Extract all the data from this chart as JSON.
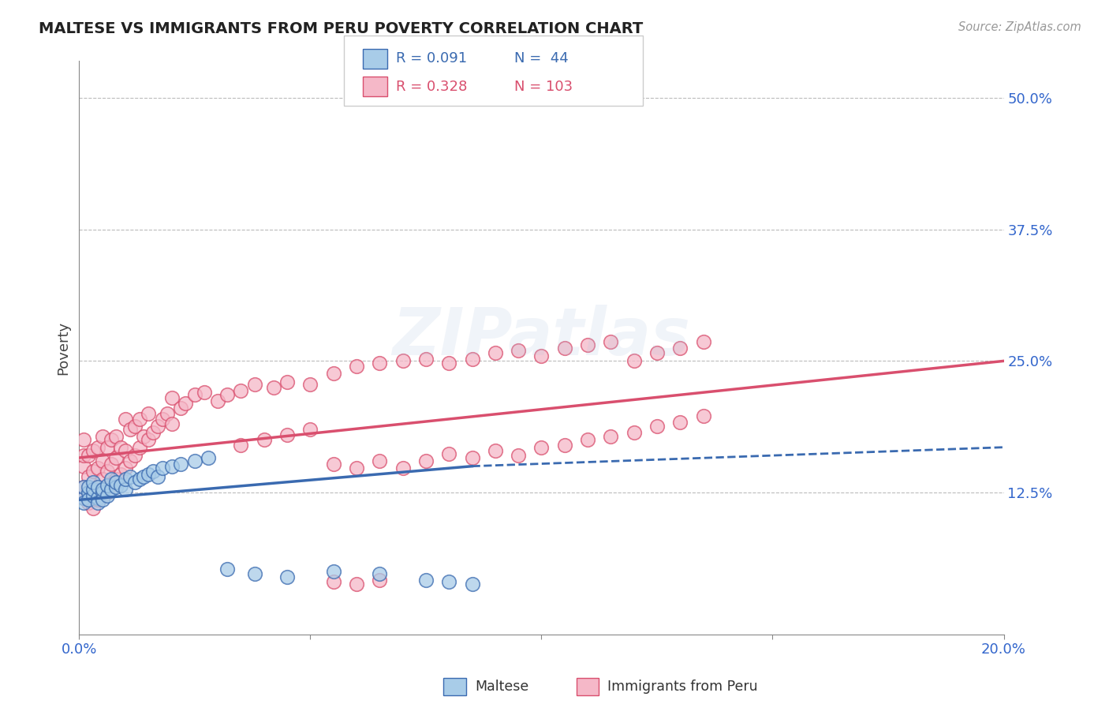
{
  "title": "MALTESE VS IMMIGRANTS FROM PERU POVERTY CORRELATION CHART",
  "source": "Source: ZipAtlas.com",
  "ylabel": "Poverty",
  "xlim": [
    0.0,
    0.2
  ],
  "ylim": [
    -0.01,
    0.535
  ],
  "yticks": [
    0.125,
    0.25,
    0.375,
    0.5
  ],
  "ytick_labels": [
    "12.5%",
    "25.0%",
    "37.5%",
    "50.0%"
  ],
  "xticks": [
    0.0,
    0.05,
    0.1,
    0.15,
    0.2
  ],
  "xtick_labels": [
    "0.0%",
    "",
    "",
    "",
    "20.0%"
  ],
  "legend_r1": "R = 0.091",
  "legend_n1": "N =  44",
  "legend_r2": "R = 0.328",
  "legend_n2": "N = 103",
  "maltese_color": "#a8cce8",
  "peru_color": "#f5b8c8",
  "maltese_line_color": "#3a6ab0",
  "peru_line_color": "#d94f6e",
  "blue_scatter_x": [
    0.001,
    0.001,
    0.001,
    0.002,
    0.002,
    0.002,
    0.003,
    0.003,
    0.003,
    0.004,
    0.004,
    0.004,
    0.005,
    0.005,
    0.005,
    0.006,
    0.006,
    0.007,
    0.007,
    0.008,
    0.008,
    0.009,
    0.01,
    0.01,
    0.011,
    0.012,
    0.013,
    0.014,
    0.015,
    0.016,
    0.017,
    0.018,
    0.02,
    0.022,
    0.025,
    0.028,
    0.032,
    0.038,
    0.045,
    0.055,
    0.065,
    0.075,
    0.08,
    0.085
  ],
  "blue_scatter_y": [
    0.12,
    0.13,
    0.115,
    0.125,
    0.13,
    0.118,
    0.122,
    0.128,
    0.135,
    0.12,
    0.13,
    0.115,
    0.125,
    0.118,
    0.128,
    0.122,
    0.132,
    0.128,
    0.138,
    0.13,
    0.135,
    0.132,
    0.128,
    0.138,
    0.14,
    0.135,
    0.138,
    0.14,
    0.142,
    0.145,
    0.14,
    0.148,
    0.15,
    0.152,
    0.155,
    0.158,
    0.052,
    0.048,
    0.045,
    0.05,
    0.048,
    0.042,
    0.04,
    0.038
  ],
  "pink_scatter_x": [
    0.001,
    0.001,
    0.001,
    0.001,
    0.001,
    0.002,
    0.002,
    0.002,
    0.002,
    0.003,
    0.003,
    0.003,
    0.003,
    0.004,
    0.004,
    0.004,
    0.004,
    0.005,
    0.005,
    0.005,
    0.005,
    0.006,
    0.006,
    0.006,
    0.007,
    0.007,
    0.007,
    0.008,
    0.008,
    0.008,
    0.009,
    0.009,
    0.01,
    0.01,
    0.01,
    0.011,
    0.011,
    0.012,
    0.012,
    0.013,
    0.013,
    0.014,
    0.015,
    0.015,
    0.016,
    0.017,
    0.018,
    0.019,
    0.02,
    0.02,
    0.022,
    0.023,
    0.025,
    0.027,
    0.03,
    0.032,
    0.035,
    0.038,
    0.042,
    0.045,
    0.05,
    0.055,
    0.06,
    0.065,
    0.07,
    0.075,
    0.08,
    0.085,
    0.09,
    0.095,
    0.1,
    0.105,
    0.11,
    0.115,
    0.12,
    0.125,
    0.13,
    0.135,
    0.055,
    0.06,
    0.065,
    0.07,
    0.075,
    0.08,
    0.085,
    0.09,
    0.095,
    0.1,
    0.105,
    0.11,
    0.115,
    0.12,
    0.125,
    0.13,
    0.135,
    0.035,
    0.04,
    0.045,
    0.05,
    0.055,
    0.06,
    0.065
  ],
  "pink_scatter_y": [
    0.12,
    0.13,
    0.15,
    0.16,
    0.175,
    0.115,
    0.125,
    0.14,
    0.16,
    0.11,
    0.125,
    0.145,
    0.165,
    0.118,
    0.13,
    0.148,
    0.168,
    0.122,
    0.138,
    0.155,
    0.178,
    0.125,
    0.145,
    0.168,
    0.132,
    0.152,
    0.175,
    0.138,
    0.158,
    0.178,
    0.142,
    0.168,
    0.148,
    0.165,
    0.195,
    0.155,
    0.185,
    0.16,
    0.188,
    0.168,
    0.195,
    0.178,
    0.175,
    0.2,
    0.182,
    0.188,
    0.195,
    0.2,
    0.19,
    0.215,
    0.205,
    0.21,
    0.218,
    0.22,
    0.212,
    0.218,
    0.222,
    0.228,
    0.225,
    0.23,
    0.228,
    0.238,
    0.245,
    0.248,
    0.25,
    0.252,
    0.248,
    0.252,
    0.258,
    0.26,
    0.255,
    0.262,
    0.265,
    0.268,
    0.25,
    0.258,
    0.262,
    0.268,
    0.152,
    0.148,
    0.155,
    0.148,
    0.155,
    0.162,
    0.158,
    0.165,
    0.16,
    0.168,
    0.17,
    0.175,
    0.178,
    0.182,
    0.188,
    0.192,
    0.198,
    0.17,
    0.175,
    0.18,
    0.185,
    0.04,
    0.038,
    0.042
  ],
  "blue_line_x0": 0.0,
  "blue_line_y0": 0.118,
  "blue_line_x1": 0.085,
  "blue_line_y1": 0.15,
  "blue_line_xdash_end": 0.2,
  "blue_line_ydash_end": 0.168,
  "pink_line_x0": 0.0,
  "pink_line_y0": 0.158,
  "pink_line_x1": 0.2,
  "pink_line_y1": 0.25
}
